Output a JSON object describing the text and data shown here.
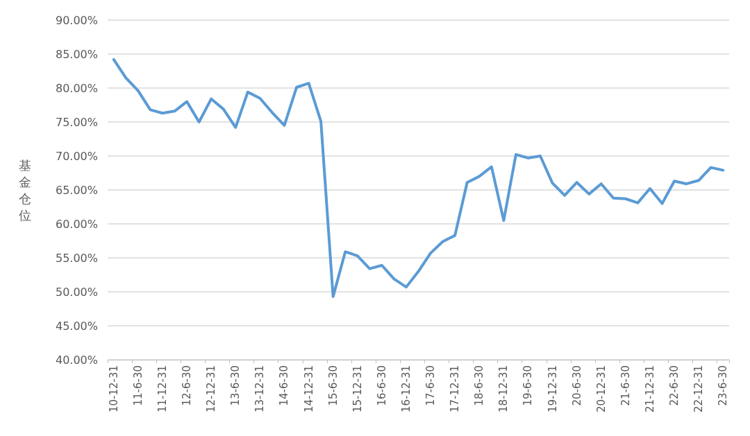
{
  "chart_data": {
    "type": "line",
    "ylabel": "基金仓位",
    "categories": [
      "10-12-31",
      null,
      "11-6-30",
      null,
      "11-12-31",
      null,
      "12-6-30",
      null,
      "12-12-31",
      null,
      "13-6-30",
      null,
      "13-12-31",
      null,
      "14-6-30",
      null,
      "14-12-31",
      null,
      "15-6-30",
      null,
      "15-12-31",
      null,
      "16-6-30",
      null,
      "16-12-31",
      null,
      "17-6-30",
      null,
      "17-12-31",
      null,
      "18-6-30",
      null,
      "18-12-31",
      null,
      "19-6-30",
      null,
      "19-12-31",
      null,
      "20-6-30",
      null,
      "20-12-31",
      null,
      "21-6-30",
      null,
      "21-12-31",
      null,
      "22-6-30",
      null,
      "22-12-31",
      null,
      "23-6-30"
    ],
    "series": [
      {
        "color": "#5b9bd5",
        "values": [
          84.2,
          81.5,
          79.6,
          76.8,
          76.3,
          76.6,
          78.0,
          75.0,
          78.4,
          76.9,
          74.2,
          79.4,
          78.5,
          76.4,
          74.5,
          80.1,
          80.7,
          75.1,
          49.3,
          55.9,
          55.3,
          53.4,
          53.9,
          51.9,
          50.7,
          53.0,
          55.7,
          57.4,
          58.3,
          66.1,
          67.0,
          68.4,
          60.5,
          70.2,
          69.7,
          70.0,
          66.0,
          64.2,
          66.1,
          64.4,
          65.9,
          63.8,
          63.7,
          63.1,
          65.2,
          63.0,
          66.3,
          65.9,
          66.4,
          68.3,
          67.9
        ]
      }
    ],
    "ylim": [
      40,
      90
    ],
    "yticks": [
      {
        "value": 40,
        "label": "40.00%"
      },
      {
        "value": 45,
        "label": "45.00%"
      },
      {
        "value": 50,
        "label": "50.00%"
      },
      {
        "value": 55,
        "label": "55.00%"
      },
      {
        "value": 60,
        "label": "60.00%"
      },
      {
        "value": 65,
        "label": "65.00%"
      },
      {
        "value": 70,
        "label": "70.00%"
      },
      {
        "value": 75,
        "label": "75.00%"
      },
      {
        "value": 80,
        "label": "80.00%"
      },
      {
        "value": 85,
        "label": "85.00%"
      },
      {
        "value": 90,
        "label": "90.00%"
      }
    ],
    "grid": "y",
    "marker": "none",
    "line_style": "solid"
  }
}
